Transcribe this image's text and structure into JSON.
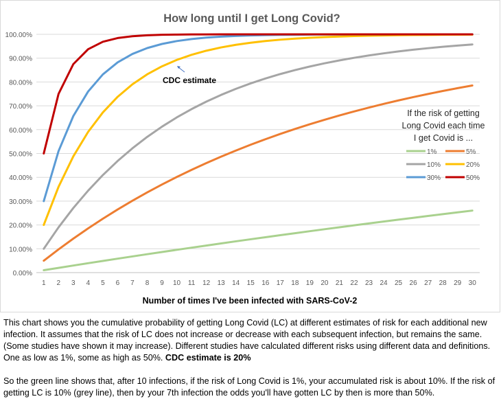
{
  "chart_data": {
    "type": "line",
    "title": "How long until I get Long Covid?",
    "xlabel": "Number of times I've been infected with SARS-CoV-2",
    "ylabel": "",
    "x": [
      1,
      2,
      3,
      4,
      5,
      6,
      7,
      8,
      9,
      10,
      11,
      12,
      13,
      14,
      15,
      16,
      17,
      18,
      19,
      20,
      21,
      22,
      23,
      24,
      25,
      26,
      27,
      28,
      29,
      30
    ],
    "ylim": [
      0,
      1
    ],
    "yticks": [
      "0.00%",
      "10.00%",
      "20.00%",
      "30.00%",
      "40.00%",
      "50.00%",
      "60.00%",
      "70.00%",
      "80.00%",
      "90.00%",
      "100.00%"
    ],
    "grid": true,
    "legend_title": [
      "If the risk of getting",
      "Long Covid each time",
      "I get Covid is ..."
    ],
    "legend_position": "right",
    "annotation": "CDC estimate",
    "series": [
      {
        "name": "1%",
        "risk": 0.01,
        "color": "#a9d18e"
      },
      {
        "name": "5%",
        "risk": 0.05,
        "color": "#ed7d31"
      },
      {
        "name": "10%",
        "risk": 0.1,
        "color": "#a5a5a5"
      },
      {
        "name": "20%",
        "risk": 0.2,
        "color": "#ffc000"
      },
      {
        "name": "30%",
        "risk": 0.3,
        "color": "#5b9bd5"
      },
      {
        "name": "50%",
        "risk": 0.5,
        "color": "#c00000"
      }
    ]
  },
  "caption": {
    "p1_text": "This chart shows you the cumulative probability of getting Long Covid (LC) at different estimates of risk for each additional new infection. It assumes that the risk of LC does not increase or decrease with each subsequent infection, but remains the same. (Some studies have shown it may increase). Different studies have calculated different risks using different data and definitions. One as low as 1%, some as high as 50%.",
    "p1_bold": "CDC estimate is 20%",
    "p2_text": "So the green line shows that, after 10 infections, if the risk of Long Covid is 1%, your accumulated risk is about 10%. If the risk of getting LC is 10% (grey line), then by your 7th infection the odds you'll have gotten LC by then is more than 50%."
  }
}
